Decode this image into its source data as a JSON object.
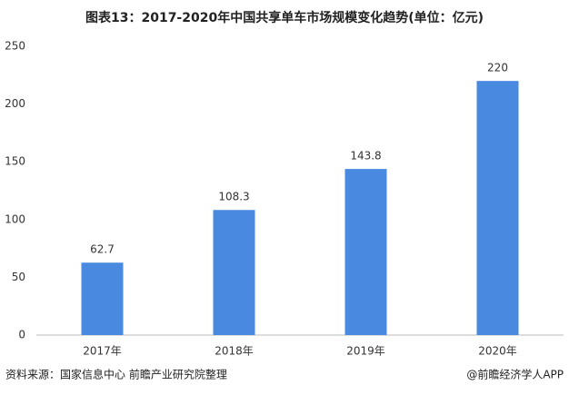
{
  "chart_data": {
    "type": "bar",
    "title": "图表13：2017-2020年中国共享单车市场规模变化趋势(单位：亿元)",
    "categories": [
      "2017年",
      "2018年",
      "2019年",
      "2020年"
    ],
    "values": [
      62.7,
      108.3,
      143.8,
      220
    ],
    "color": "#4a89e0",
    "ylim": [
      0,
      250
    ],
    "yticks": [
      0,
      50,
      100,
      150,
      200,
      250
    ],
    "grid": false,
    "source": "资料来源：国家信息中心 前瞻产业研究院整理",
    "credit": "@前瞻经济学人APP"
  }
}
